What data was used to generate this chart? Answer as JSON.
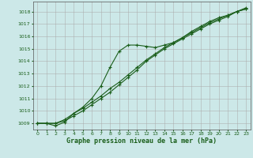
{
  "title": "Graphe pression niveau de la mer (hPa)",
  "bg_color": "#cce8e8",
  "grid_color": "#aaaaaa",
  "line_color": "#1a5e1a",
  "xlim": [
    -0.5,
    23.5
  ],
  "ylim": [
    1008.5,
    1018.8
  ],
  "yticks": [
    1009,
    1010,
    1011,
    1012,
    1013,
    1014,
    1015,
    1016,
    1017,
    1018
  ],
  "xticks": [
    0,
    1,
    2,
    3,
    4,
    5,
    6,
    7,
    8,
    9,
    10,
    11,
    12,
    13,
    14,
    15,
    16,
    17,
    18,
    19,
    20,
    21,
    22,
    23
  ],
  "series1_x": [
    0,
    1,
    2,
    3,
    4,
    5,
    6,
    7,
    8,
    9,
    10,
    11,
    12,
    13,
    14,
    15,
    16,
    17,
    18,
    19,
    20,
    21,
    22,
    23
  ],
  "series1_y": [
    1009.0,
    1009.0,
    1008.8,
    1009.1,
    1009.8,
    1010.3,
    1011.0,
    1012.0,
    1013.5,
    1014.8,
    1015.3,
    1015.3,
    1015.2,
    1015.1,
    1015.3,
    1015.5,
    1015.9,
    1016.4,
    1016.8,
    1017.2,
    1017.5,
    1017.7,
    1018.0,
    1018.3
  ],
  "series2_x": [
    0,
    1,
    2,
    3,
    4,
    5,
    6,
    7,
    8,
    9,
    10,
    11,
    12,
    13,
    14,
    15,
    16,
    17,
    18,
    19,
    20,
    21,
    22,
    23
  ],
  "series2_y": [
    1009.0,
    1009.0,
    1009.0,
    1009.3,
    1009.8,
    1010.2,
    1010.7,
    1011.2,
    1011.8,
    1012.3,
    1012.9,
    1013.5,
    1014.1,
    1014.6,
    1015.1,
    1015.5,
    1015.9,
    1016.3,
    1016.7,
    1017.1,
    1017.4,
    1017.7,
    1018.0,
    1018.2
  ],
  "series3_x": [
    0,
    1,
    2,
    3,
    4,
    5,
    6,
    7,
    8,
    9,
    10,
    11,
    12,
    13,
    14,
    15,
    16,
    17,
    18,
    19,
    20,
    21,
    22,
    23
  ],
  "series3_y": [
    1009.0,
    1009.0,
    1009.0,
    1009.2,
    1009.6,
    1010.0,
    1010.5,
    1011.0,
    1011.5,
    1012.1,
    1012.7,
    1013.3,
    1014.0,
    1014.5,
    1015.0,
    1015.4,
    1015.8,
    1016.2,
    1016.6,
    1017.0,
    1017.3,
    1017.6,
    1018.0,
    1018.2
  ]
}
